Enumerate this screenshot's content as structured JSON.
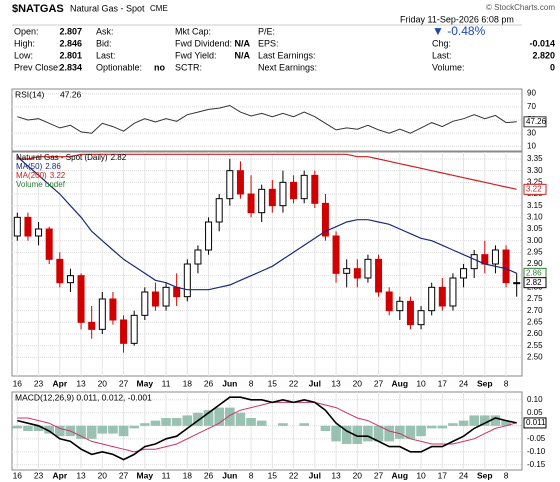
{
  "header": {
    "symbol": "$NATGAS",
    "name": "Natural Gas - Spot",
    "exchange": "CME",
    "source": "© StockCharts.com",
    "date": "Friday  11-Sep-2026  6:08 pm",
    "change": "▼ -0.48%",
    "columns": [
      [
        {
          "label": "Open:",
          "value": "2.807"
        },
        {
          "label": "High:",
          "value": "2.846"
        },
        {
          "label": "Low:",
          "value": "2.801"
        },
        {
          "label": "Prev Close:",
          "value": "2.834"
        }
      ],
      [
        {
          "label": "Ask:"
        },
        {
          "label": "Bid:"
        },
        {
          "label": "Last:"
        },
        {
          "label": "Optionable:",
          "value": "no"
        }
      ],
      [
        {
          "label": "Mkt Cap:"
        },
        {
          "label": "Fwd Dividend:",
          "value": "N/A"
        },
        {
          "label": "Fwd Yield:",
          "value": "N/A"
        },
        {
          "label": "SCTR:"
        }
      ],
      [
        {
          "label": "P/E:"
        },
        {
          "label": "EPS:"
        },
        {
          "label": "Last Earnings:"
        },
        {
          "label": "Next Earnings:"
        }
      ],
      [
        {
          "label": "Chg:",
          "value": "-0.014"
        },
        {
          "label": "Last:",
          "value": "2.820"
        },
        {
          "label": "Volume:",
          "value": "0"
        }
      ]
    ]
  },
  "chart_data": [
    {
      "type": "line",
      "name": "RSI(14)",
      "color": "#333333",
      "ylim": [
        3,
        97
      ],
      "yticks": [
        10,
        30,
        50,
        70,
        90
      ],
      "values": [
        55,
        50,
        52,
        45,
        38,
        42,
        32,
        30,
        45,
        40,
        33,
        45,
        52,
        47,
        52,
        48,
        58,
        62,
        66,
        68,
        72,
        62,
        56,
        60,
        55,
        60,
        55,
        62,
        55,
        45,
        35,
        38,
        36,
        42,
        35,
        30,
        36,
        30,
        38,
        46,
        40,
        48,
        52,
        58,
        52,
        57,
        46,
        47.26
      ]
    },
    {
      "type": "candlestick",
      "name": "Natural Gas - Spot (Daily)",
      "up_color": "#000000",
      "down_color": "#d00000",
      "volume_label": "Volume undef",
      "volume_color": "#2e7d32",
      "categories": [
        "16",
        null,
        "23",
        null,
        "Apr",
        null,
        "13",
        null,
        "20",
        null,
        "27",
        null,
        "May",
        null,
        "11",
        null,
        "18",
        null,
        "26",
        null,
        "Jun",
        null,
        "8",
        null,
        "15",
        null,
        "22",
        null,
        "Jul",
        null,
        "13",
        null,
        "20",
        null,
        "27",
        null,
        "Aug",
        null,
        "10",
        null,
        "17",
        null,
        "24",
        null,
        "Sep",
        null,
        "8",
        null
      ],
      "open": [
        3.02,
        3.1,
        3.02,
        3.05,
        2.92,
        2.82,
        2.85,
        2.65,
        2.62,
        2.75,
        2.66,
        2.56,
        2.68,
        2.78,
        2.72,
        2.8,
        2.76,
        2.9,
        2.96,
        3.08,
        3.18,
        3.3,
        3.2,
        3.12,
        3.22,
        3.15,
        3.25,
        3.18,
        3.28,
        3.16,
        3.02,
        2.86,
        2.88,
        2.84,
        2.92,
        2.78,
        2.7,
        2.74,
        2.64,
        2.7,
        2.8,
        2.72,
        2.84,
        2.88,
        2.94,
        2.9,
        2.96,
        2.82
      ],
      "high": [
        3.12,
        3.12,
        3.08,
        3.06,
        2.95,
        2.88,
        2.86,
        2.72,
        2.78,
        2.78,
        2.68,
        2.7,
        2.8,
        2.82,
        2.82,
        2.86,
        2.92,
        2.98,
        3.1,
        3.2,
        3.35,
        3.34,
        3.28,
        3.24,
        3.26,
        3.3,
        3.28,
        3.3,
        3.3,
        3.2,
        3.04,
        2.92,
        2.92,
        2.94,
        2.94,
        2.8,
        2.76,
        2.76,
        2.72,
        2.82,
        2.84,
        2.86,
        2.9,
        2.96,
        3.0,
        2.98,
        2.98,
        2.86
      ],
      "low": [
        3.0,
        3.0,
        2.98,
        2.9,
        2.8,
        2.78,
        2.62,
        2.58,
        2.6,
        2.64,
        2.52,
        2.55,
        2.66,
        2.7,
        2.7,
        2.72,
        2.74,
        2.86,
        2.94,
        3.04,
        3.15,
        3.18,
        3.1,
        3.08,
        3.12,
        3.12,
        3.16,
        3.16,
        3.14,
        3.0,
        2.82,
        2.8,
        2.8,
        2.82,
        2.76,
        2.68,
        2.66,
        2.62,
        2.62,
        2.68,
        2.7,
        2.7,
        2.8,
        2.84,
        2.86,
        2.86,
        2.8,
        2.76
      ],
      "close": [
        3.1,
        3.02,
        3.05,
        2.92,
        2.82,
        2.85,
        2.65,
        2.62,
        2.75,
        2.66,
        2.56,
        2.68,
        2.78,
        2.72,
        2.8,
        2.76,
        2.9,
        2.96,
        3.08,
        3.18,
        3.3,
        3.2,
        3.12,
        3.22,
        3.15,
        3.25,
        3.18,
        3.28,
        3.16,
        3.02,
        2.86,
        2.88,
        2.84,
        2.92,
        2.78,
        2.7,
        2.74,
        2.64,
        2.7,
        2.8,
        2.72,
        2.84,
        2.88,
        2.94,
        2.9,
        2.96,
        2.82,
        2.82
      ],
      "series": [
        {
          "name": "MA(50)",
          "color": "#1a2a7a",
          "box_color": "#2e7d32",
          "values": [
            3.36,
            3.32,
            3.28,
            3.24,
            3.2,
            3.15,
            3.1,
            3.04,
            3.0,
            2.96,
            2.92,
            2.89,
            2.86,
            2.83,
            2.82,
            2.8,
            2.79,
            2.79,
            2.79,
            2.8,
            2.81,
            2.83,
            2.85,
            2.87,
            2.89,
            2.92,
            2.95,
            2.98,
            3.01,
            3.04,
            3.06,
            3.08,
            3.09,
            3.09,
            3.08,
            3.07,
            3.05,
            3.03,
            3.01,
            3.0,
            2.98,
            2.96,
            2.94,
            2.92,
            2.9,
            2.89,
            2.88,
            2.86
          ]
        },
        {
          "name": "MA(200)",
          "color": "#cc2222",
          "box_color": "#cc2222",
          "values": [
            3.35,
            3.35,
            3.36,
            3.36,
            3.36,
            3.36,
            3.37,
            3.37,
            3.37,
            3.37,
            3.37,
            3.37,
            3.37,
            3.37,
            3.37,
            3.37,
            3.37,
            3.37,
            3.37,
            3.37,
            3.37,
            3.37,
            3.37,
            3.37,
            3.37,
            3.37,
            3.37,
            3.37,
            3.37,
            3.37,
            3.37,
            3.37,
            3.36,
            3.36,
            3.35,
            3.34,
            3.33,
            3.32,
            3.31,
            3.3,
            3.29,
            3.28,
            3.27,
            3.26,
            3.25,
            3.24,
            3.23,
            3.22
          ]
        }
      ],
      "ylim": [
        2.42,
        3.38
      ],
      "yticks": [
        {
          "value": 2.5,
          "label": "2.50"
        },
        {
          "value": 2.55,
          "label": "2.55"
        },
        {
          "value": 2.6,
          "label": "2.60"
        },
        {
          "value": 2.65,
          "label": "2.65"
        },
        {
          "value": 2.7,
          "label": "2.70"
        },
        {
          "value": 2.75,
          "label": "2.75"
        },
        {
          "value": 2.8,
          "label": "2.80"
        },
        {
          "value": 2.85,
          "label": "2.85"
        },
        {
          "value": 2.9,
          "label": "2.90"
        },
        {
          "value": 2.95,
          "label": "2.95"
        },
        {
          "value": 3.0,
          "label": "3.00"
        },
        {
          "value": 3.05,
          "label": "3.05"
        },
        {
          "value": 3.1,
          "label": "3.10"
        },
        {
          "value": 3.15,
          "label": "3.15"
        },
        {
          "value": 3.2,
          "label": "3.20"
        },
        {
          "value": 3.25,
          "label": "3.25"
        },
        {
          "value": 3.3,
          "label": "3.30"
        },
        {
          "value": 3.35,
          "label": "3.35"
        }
      ]
    },
    {
      "type": "macd",
      "legend": "MACD(12,26,9) 0.011, 0.012, -0.001",
      "categories": [
        "16",
        null,
        "23",
        null,
        "Apr",
        null,
        "13",
        null,
        "20",
        null,
        "27",
        null,
        "May",
        null,
        "11",
        null,
        "18",
        null,
        "26",
        null,
        "Jun",
        null,
        "8",
        null,
        "15",
        null,
        "22",
        null,
        "Jul",
        null,
        "13",
        null,
        "20",
        null,
        "27",
        null,
        "Aug",
        null,
        "10",
        null,
        "17",
        null,
        "24",
        null,
        "Sep",
        null,
        "8",
        null
      ],
      "series": [
        {
          "name": "MACD",
          "color": "#000000",
          "values": [
            0.02,
            0.01,
            0.0,
            -0.02,
            -0.05,
            -0.06,
            -0.09,
            -0.11,
            -0.1,
            -0.11,
            -0.13,
            -0.11,
            -0.08,
            -0.07,
            -0.05,
            -0.04,
            -0.01,
            0.02,
            0.05,
            0.08,
            0.11,
            0.11,
            0.1,
            0.1,
            0.09,
            0.1,
            0.09,
            0.1,
            0.09,
            0.06,
            0.01,
            -0.02,
            -0.04,
            -0.04,
            -0.06,
            -0.08,
            -0.08,
            -0.1,
            -0.1,
            -0.08,
            -0.08,
            -0.06,
            -0.04,
            -0.01,
            0.01,
            0.03,
            0.02,
            0.011
          ]
        },
        {
          "name": "Signal",
          "color": "#cc3366",
          "values": [
            0.03,
            0.03,
            0.02,
            0.01,
            -0.01,
            -0.02,
            -0.04,
            -0.06,
            -0.07,
            -0.08,
            -0.09,
            -0.1,
            -0.09,
            -0.09,
            -0.08,
            -0.07,
            -0.05,
            -0.03,
            -0.01,
            0.01,
            0.04,
            0.06,
            0.07,
            0.08,
            0.09,
            0.09,
            0.09,
            0.09,
            0.09,
            0.08,
            0.07,
            0.05,
            0.03,
            0.02,
            0.0,
            -0.02,
            -0.03,
            -0.05,
            -0.06,
            -0.07,
            -0.07,
            -0.07,
            -0.06,
            -0.05,
            -0.03,
            -0.01,
            0.0,
            0.012
          ]
        },
        {
          "name": "Histogram",
          "color": "#7fb3a0",
          "values": [
            -0.01,
            -0.02,
            -0.02,
            -0.03,
            -0.04,
            -0.04,
            -0.05,
            -0.05,
            -0.03,
            -0.03,
            -0.04,
            -0.01,
            0.01,
            0.02,
            0.03,
            0.03,
            0.04,
            0.05,
            0.06,
            0.07,
            0.07,
            0.05,
            0.03,
            0.02,
            0.0,
            0.01,
            0.0,
            0.01,
            0.0,
            -0.02,
            -0.06,
            -0.07,
            -0.07,
            -0.06,
            -0.06,
            -0.06,
            -0.05,
            -0.05,
            -0.04,
            -0.01,
            -0.01,
            0.01,
            0.02,
            0.04,
            0.04,
            0.04,
            0.02,
            -0.001
          ]
        }
      ],
      "ylim": [
        -0.17,
        0.13
      ],
      "yticks": [
        {
          "value": -0.15,
          "label": "-0.15"
        },
        {
          "value": -0.1,
          "label": "-0.10"
        },
        {
          "value": -0.05,
          "label": "-0.05"
        },
        {
          "value": 0,
          "label": "0.00"
        },
        {
          "value": 0.05,
          "label": "0.05"
        },
        {
          "value": 0.1,
          "label": "0.10"
        }
      ]
    }
  ]
}
